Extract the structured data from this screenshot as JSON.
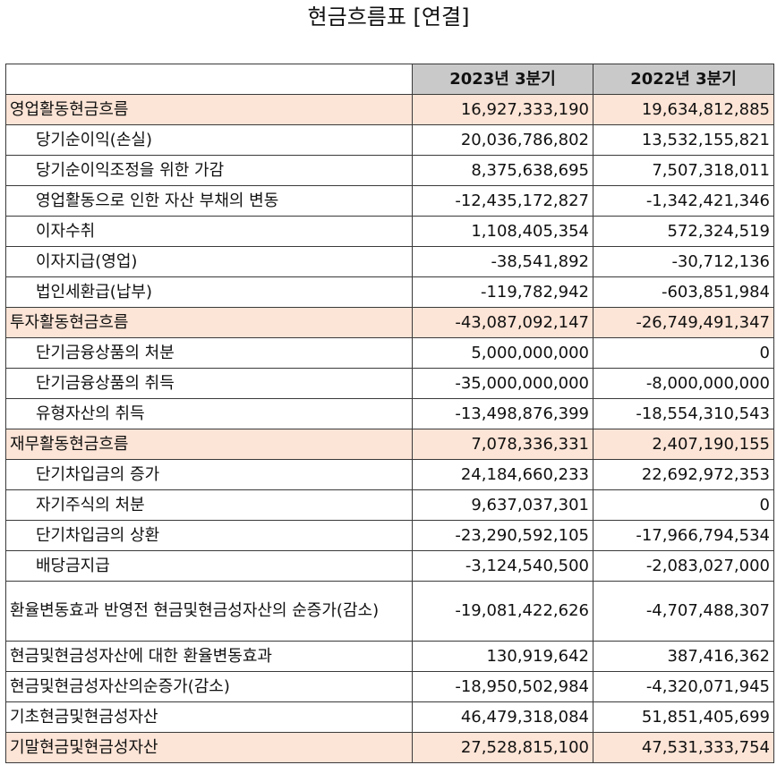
{
  "title": "현금흐름표 [연결]",
  "columns": [
    "",
    "2023년 3분기",
    "2022년 3분기"
  ],
  "rows": [
    {
      "label": "영업활동현금흐름",
      "v2023": "16,927,333,190",
      "v2022": "19,634,812,885",
      "highlight": true,
      "indent": false
    },
    {
      "label": "당기순이익(손실)",
      "v2023": "20,036,786,802",
      "v2022": "13,532,155,821",
      "highlight": false,
      "indent": true
    },
    {
      "label": "당기순이익조정을 위한 가감",
      "v2023": "8,375,638,695",
      "v2022": "7,507,318,011",
      "highlight": false,
      "indent": true
    },
    {
      "label": "영업활동으로 인한 자산 부채의 변동",
      "v2023": "-12,435,172,827",
      "v2022": "-1,342,421,346",
      "highlight": false,
      "indent": true
    },
    {
      "label": "이자수취",
      "v2023": "1,108,405,354",
      "v2022": "572,324,519",
      "highlight": false,
      "indent": true
    },
    {
      "label": "이자지급(영업)",
      "v2023": "-38,541,892",
      "v2022": "-30,712,136",
      "highlight": false,
      "indent": true
    },
    {
      "label": "법인세환급(납부)",
      "v2023": "-119,782,942",
      "v2022": "-603,851,984",
      "highlight": false,
      "indent": true
    },
    {
      "label": "투자활동현금흐름",
      "v2023": "-43,087,092,147",
      "v2022": "-26,749,491,347",
      "highlight": true,
      "indent": false
    },
    {
      "label": "단기금융상품의 처분",
      "v2023": "5,000,000,000",
      "v2022": "0",
      "highlight": false,
      "indent": true
    },
    {
      "label": "단기금융상품의 취득",
      "v2023": "-35,000,000,000",
      "v2022": "-8,000,000,000",
      "highlight": false,
      "indent": true
    },
    {
      "label": "유형자산의 취득",
      "v2023": "-13,498,876,399",
      "v2022": "-18,554,310,543",
      "highlight": false,
      "indent": true
    },
    {
      "label": "재무활동현금흐름",
      "v2023": "7,078,336,331",
      "v2022": "2,407,190,155",
      "highlight": true,
      "indent": false
    },
    {
      "label": "단기차입금의 증가",
      "v2023": "24,184,660,233",
      "v2022": "22,692,972,353",
      "highlight": false,
      "indent": true
    },
    {
      "label": "자기주식의 처분",
      "v2023": "9,637,037,301",
      "v2022": "0",
      "highlight": false,
      "indent": true
    },
    {
      "label": "단기차입금의 상환",
      "v2023": "-23,290,592,105",
      "v2022": "-17,966,794,534",
      "highlight": false,
      "indent": true
    },
    {
      "label": "배당금지급",
      "v2023": "-3,124,540,500",
      "v2022": "-2,083,027,000",
      "highlight": false,
      "indent": true
    },
    {
      "label": "환율변동효과 반영전 현금및현금성자산의 순증가(감소)",
      "v2023": "-19,081,422,626",
      "v2022": "-4,707,488,307",
      "highlight": false,
      "indent": false,
      "tall": true
    },
    {
      "label": "현금및현금성자산에 대한 환율변동효과",
      "v2023": "130,919,642",
      "v2022": "387,416,362",
      "highlight": false,
      "indent": false
    },
    {
      "label": "현금및현금성자산의순증가(감소)",
      "v2023": "-18,950,502,984",
      "v2022": "-4,320,071,945",
      "highlight": false,
      "indent": false
    },
    {
      "label": "기초현금및현금성자산",
      "v2023": "46,479,318,084",
      "v2022": "51,851,405,699",
      "highlight": false,
      "indent": false
    },
    {
      "label": "기말현금및현금성자산",
      "v2023": "27,528,815,100",
      "v2022": "47,531,333,754",
      "highlight": true,
      "indent": false
    }
  ],
  "colors": {
    "header_bg": "#c9c9c9",
    "highlight_bg": "#fce4d6",
    "border": "#3a3a3a"
  }
}
